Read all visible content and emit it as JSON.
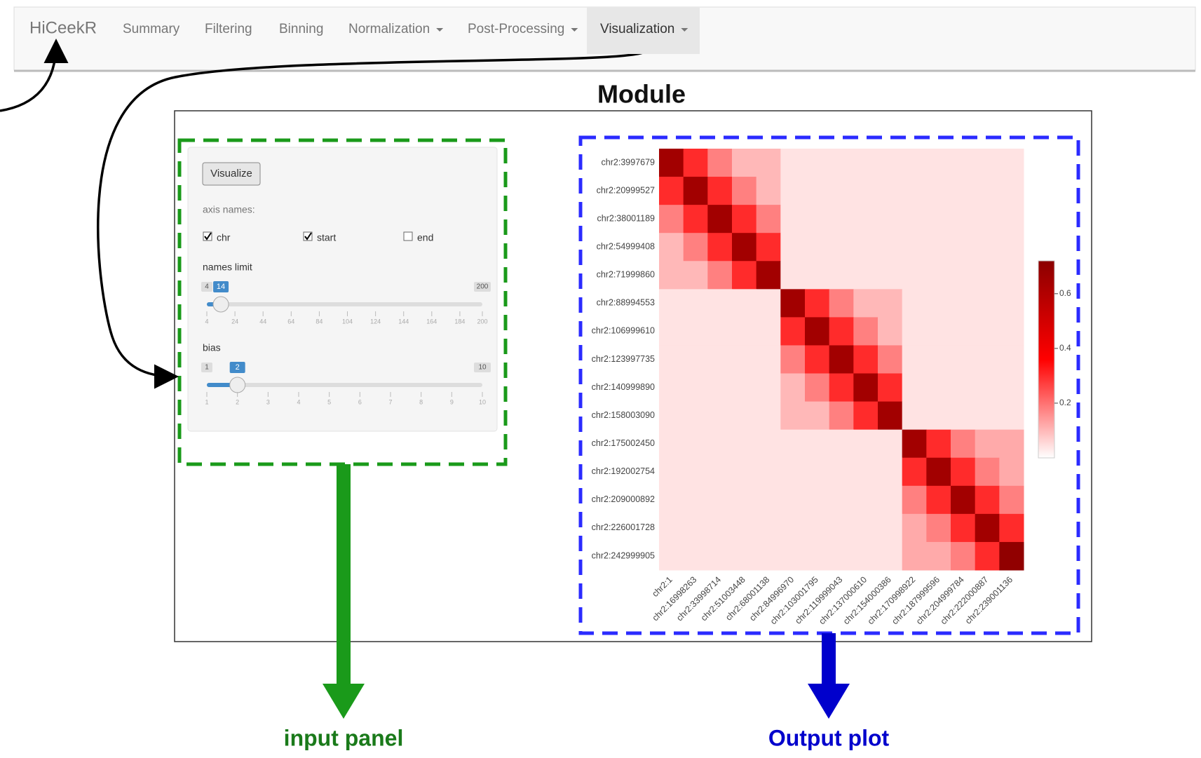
{
  "navbar": {
    "brand": "HiCeekR",
    "items": [
      {
        "label": "Summary",
        "dropdown": false,
        "active": false
      },
      {
        "label": "Filtering",
        "dropdown": false,
        "active": false
      },
      {
        "label": "Binning",
        "dropdown": false,
        "active": false
      },
      {
        "label": "Normalization",
        "dropdown": true,
        "active": false
      },
      {
        "label": "Post-Processing",
        "dropdown": true,
        "active": false
      },
      {
        "label": "Visualization",
        "dropdown": true,
        "active": true
      }
    ]
  },
  "module": {
    "title": "Module"
  },
  "input_panel": {
    "button": "Visualize",
    "axis_names_label": "axis names:",
    "checkboxes": [
      {
        "label": "chr",
        "checked": true
      },
      {
        "label": "start",
        "checked": true
      },
      {
        "label": "end",
        "checked": false
      }
    ],
    "sliders": [
      {
        "label": "names limit",
        "min": 4,
        "max": 200,
        "value": 14,
        "ticks": [
          4,
          24,
          44,
          64,
          84,
          104,
          124,
          144,
          164,
          184,
          200
        ]
      },
      {
        "label": "bias",
        "min": 1,
        "max": 10,
        "value": 2,
        "ticks": [
          1,
          2,
          3,
          4,
          5,
          6,
          7,
          8,
          9,
          10
        ]
      }
    ]
  },
  "chart_data": {
    "type": "heatmap",
    "y_labels": [
      "chr2:3997679",
      "chr2:20999527",
      "chr2:38001189",
      "chr2:54999408",
      "chr2:71999860",
      "chr2:88994553",
      "chr2:106999610",
      "chr2:123997735",
      "chr2:140999890",
      "chr2:158003090",
      "chr2:175002450",
      "chr2:192002754",
      "chr2:209000892",
      "chr2:226001728",
      "chr2:242999905"
    ],
    "x_labels": [
      "chr2:1",
      "chr2:16998263",
      "chr2:33998714",
      "chr2:51003448",
      "chr2:68001138",
      "chr2:84996970",
      "chr2:103001795",
      "chr2:119999043",
      "chr2:137000610",
      "chr2:154000386",
      "chr2:170998922",
      "chr2:187999596",
      "chr2:204999784",
      "chr2:222000887",
      "chr2:239001136"
    ],
    "values": [
      [
        0.65,
        0.3,
        0.18,
        0.1,
        0.1,
        0.04,
        0.04,
        0.04,
        0.04,
        0.04,
        0.04,
        0.04,
        0.04,
        0.04,
        0.04
      ],
      [
        0.3,
        0.65,
        0.3,
        0.18,
        0.1,
        0.04,
        0.04,
        0.04,
        0.04,
        0.04,
        0.04,
        0.04,
        0.04,
        0.04,
        0.04
      ],
      [
        0.18,
        0.3,
        0.65,
        0.3,
        0.18,
        0.04,
        0.04,
        0.04,
        0.04,
        0.04,
        0.04,
        0.04,
        0.04,
        0.04,
        0.04
      ],
      [
        0.1,
        0.18,
        0.3,
        0.65,
        0.3,
        0.04,
        0.04,
        0.04,
        0.04,
        0.04,
        0.04,
        0.04,
        0.04,
        0.04,
        0.04
      ],
      [
        0.1,
        0.1,
        0.18,
        0.3,
        0.65,
        0.04,
        0.04,
        0.04,
        0.04,
        0.04,
        0.04,
        0.04,
        0.04,
        0.04,
        0.04
      ],
      [
        0.04,
        0.04,
        0.04,
        0.04,
        0.04,
        0.65,
        0.3,
        0.18,
        0.1,
        0.1,
        0.04,
        0.04,
        0.04,
        0.04,
        0.04
      ],
      [
        0.04,
        0.04,
        0.04,
        0.04,
        0.04,
        0.3,
        0.65,
        0.3,
        0.18,
        0.1,
        0.04,
        0.04,
        0.04,
        0.04,
        0.04
      ],
      [
        0.04,
        0.04,
        0.04,
        0.04,
        0.04,
        0.18,
        0.3,
        0.65,
        0.3,
        0.18,
        0.04,
        0.04,
        0.04,
        0.04,
        0.04
      ],
      [
        0.04,
        0.04,
        0.04,
        0.04,
        0.04,
        0.1,
        0.18,
        0.3,
        0.65,
        0.3,
        0.04,
        0.04,
        0.04,
        0.04,
        0.04
      ],
      [
        0.04,
        0.04,
        0.04,
        0.04,
        0.04,
        0.1,
        0.1,
        0.18,
        0.3,
        0.65,
        0.04,
        0.04,
        0.04,
        0.04,
        0.04
      ],
      [
        0.04,
        0.04,
        0.04,
        0.04,
        0.04,
        0.04,
        0.04,
        0.04,
        0.04,
        0.04,
        0.65,
        0.3,
        0.18,
        0.12,
        0.12
      ],
      [
        0.04,
        0.04,
        0.04,
        0.04,
        0.04,
        0.04,
        0.04,
        0.04,
        0.04,
        0.04,
        0.3,
        0.65,
        0.3,
        0.18,
        0.12
      ],
      [
        0.04,
        0.04,
        0.04,
        0.04,
        0.04,
        0.04,
        0.04,
        0.04,
        0.04,
        0.04,
        0.18,
        0.3,
        0.65,
        0.3,
        0.18
      ],
      [
        0.04,
        0.04,
        0.04,
        0.04,
        0.04,
        0.04,
        0.04,
        0.04,
        0.04,
        0.04,
        0.12,
        0.18,
        0.3,
        0.65,
        0.3
      ],
      [
        0.04,
        0.04,
        0.04,
        0.04,
        0.04,
        0.04,
        0.04,
        0.04,
        0.04,
        0.04,
        0.12,
        0.12,
        0.18,
        0.3,
        0.7
      ]
    ],
    "zlim": [
      0,
      0.72
    ],
    "zticks": [
      0.2,
      0.4,
      0.6
    ],
    "colors": [
      "#ffffff",
      "#ff0000",
      "#8b0000"
    ]
  },
  "annotations": {
    "input": "input panel",
    "output": "Output plot"
  }
}
